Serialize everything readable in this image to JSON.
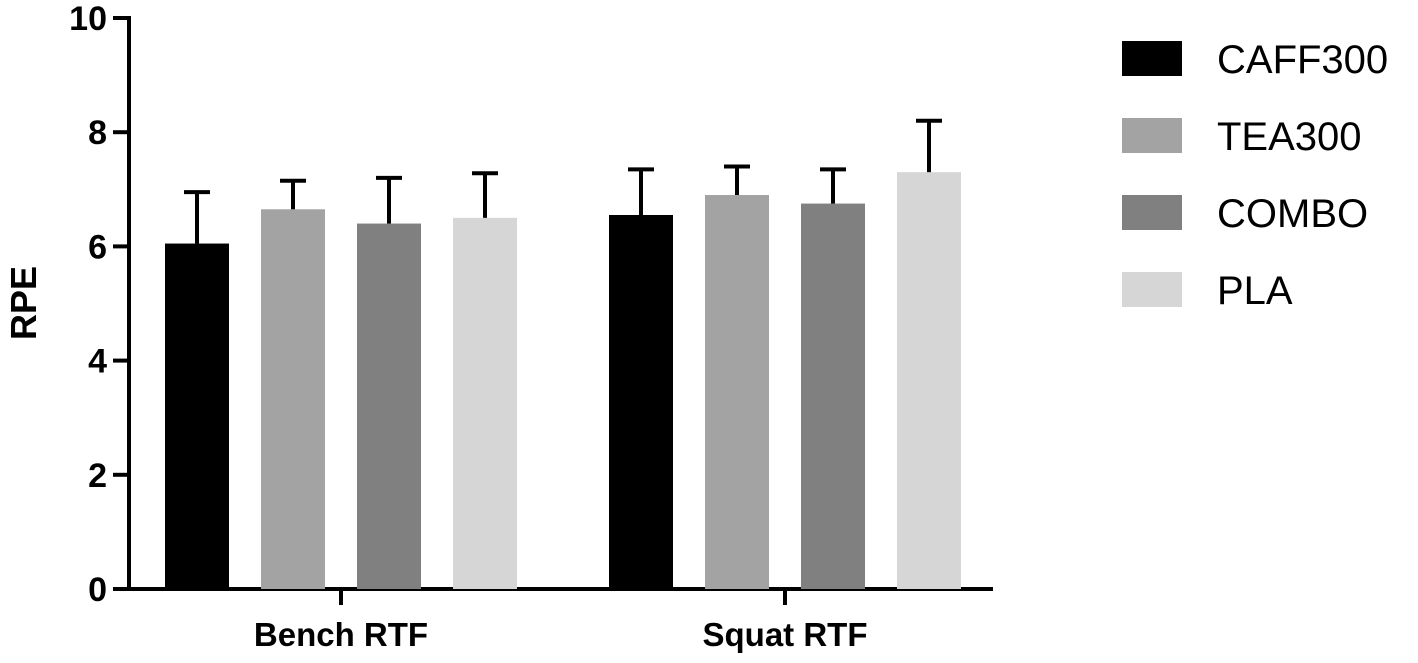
{
  "chart_data": {
    "type": "bar",
    "categories": [
      "Bench RTF",
      "Squat RTF"
    ],
    "series": [
      {
        "name": "CAFF300",
        "values": [
          6.05,
          6.55
        ],
        "errors": [
          0.9,
          0.8
        ],
        "color": "#000000"
      },
      {
        "name": "TEA300",
        "values": [
          6.65,
          6.9
        ],
        "errors": [
          0.5,
          0.5
        ],
        "color": "#a3a3a3"
      },
      {
        "name": "COMBO",
        "values": [
          6.4,
          6.75
        ],
        "errors": [
          0.8,
          0.6
        ],
        "color": "#808080"
      },
      {
        "name": "PLA",
        "values": [
          6.5,
          7.3
        ],
        "errors": [
          0.78,
          0.9
        ],
        "color": "#d6d6d6"
      }
    ],
    "title": "",
    "xlabel": "",
    "ylabel": "RPE",
    "ylim": [
      0,
      10
    ],
    "yticks": [
      "0",
      "2",
      "4",
      "6",
      "8",
      "10"
    ],
    "legend_position": "right",
    "grid": false
  }
}
